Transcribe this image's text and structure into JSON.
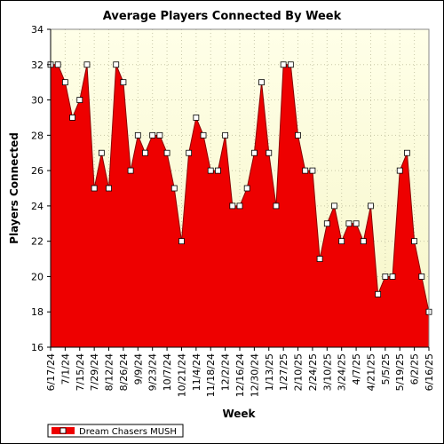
{
  "chart_data": {
    "type": "area",
    "title": "Average Players Connected By Week",
    "xlabel": "Week",
    "ylabel": "Players Connected",
    "ylim": [
      16,
      34
    ],
    "yticks": [
      16,
      18,
      20,
      22,
      24,
      26,
      28,
      30,
      32,
      34
    ],
    "grid": true,
    "legend_position": "bottom-left",
    "colors": {
      "fill": "#ee0000",
      "line": "#8b0000",
      "plot_bg_top": "#ffffe8",
      "plot_bg_bottom": "#f6f6c8",
      "marker_fill": "#ffffff"
    },
    "x_tick_labels": [
      "6/17/24",
      "7/1/24",
      "7/15/24",
      "7/29/24",
      "8/12/24",
      "8/26/24",
      "9/9/24",
      "9/23/24",
      "10/7/24",
      "10/21/24",
      "11/4/24",
      "11/18/24",
      "12/2/24",
      "12/16/24",
      "12/30/24",
      "1/13/25",
      "1/27/25",
      "2/10/25",
      "2/24/25",
      "3/10/25",
      "3/24/25",
      "4/7/25",
      "4/21/25",
      "5/5/25",
      "5/19/25",
      "6/2/25",
      "6/16/25"
    ],
    "x": [
      "6/17/24",
      "6/24/24",
      "7/1/24",
      "7/8/24",
      "7/15/24",
      "7/22/24",
      "7/29/24",
      "8/5/24",
      "8/12/24",
      "8/19/24",
      "8/26/24",
      "9/2/24",
      "9/9/24",
      "9/16/24",
      "9/23/24",
      "9/30/24",
      "10/7/24",
      "10/14/24",
      "10/21/24",
      "10/28/24",
      "11/4/24",
      "11/11/24",
      "11/18/24",
      "11/25/24",
      "12/2/24",
      "12/9/24",
      "12/16/24",
      "12/23/24",
      "12/30/24",
      "1/6/25",
      "1/13/25",
      "1/20/25",
      "1/27/25",
      "2/3/25",
      "2/10/25",
      "2/17/25",
      "2/24/25",
      "3/3/25",
      "3/10/25",
      "3/17/25",
      "3/24/25",
      "3/31/25",
      "4/7/25",
      "4/14/25",
      "4/21/25",
      "4/28/25",
      "5/5/25",
      "5/12/25",
      "5/19/25",
      "5/26/25",
      "6/2/25",
      "6/9/25",
      "6/16/25"
    ],
    "series": [
      {
        "name": "Dream Chasers MUSH",
        "values": [
          32,
          32,
          31,
          29,
          30,
          32,
          25,
          27,
          25,
          32,
          31,
          26,
          28,
          27,
          28,
          28,
          27,
          25,
          22,
          27,
          29,
          28,
          26,
          26,
          28,
          24,
          24,
          25,
          27,
          31,
          27,
          24,
          32,
          32,
          28,
          26,
          26,
          21,
          23,
          24,
          22,
          23,
          23,
          22,
          24,
          19,
          20,
          20,
          26,
          27,
          22,
          20,
          18
        ]
      }
    ]
  }
}
